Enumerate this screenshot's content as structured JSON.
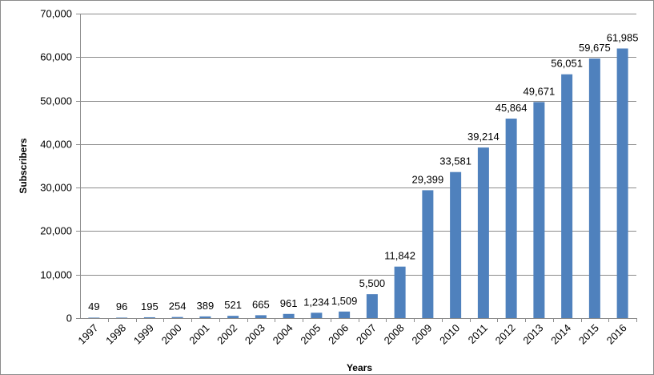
{
  "chart_data": {
    "type": "bar",
    "categories": [
      "1997",
      "1998",
      "1999",
      "2000",
      "2001",
      "2002",
      "2003",
      "2004",
      "2005",
      "2006",
      "2007",
      "2008",
      "2009",
      "2010",
      "2011",
      "2012",
      "2013",
      "2014",
      "2015",
      "2016"
    ],
    "values": [
      49,
      96,
      195,
      254,
      389,
      521,
      665,
      961,
      1234,
      1509,
      5500,
      11842,
      29399,
      33581,
      39214,
      45864,
      49671,
      56051,
      59675,
      61985
    ],
    "data_labels": [
      "49",
      "96",
      "195",
      "254",
      "389",
      "521",
      "665",
      "961",
      "1,234",
      "1,509",
      "5,500",
      "11,842",
      "29,399",
      "33,581",
      "39,214",
      "45,864",
      "49,671",
      "56,051",
      "59,675",
      "61,985"
    ],
    "y_ticks": [
      0,
      10000,
      20000,
      30000,
      40000,
      50000,
      60000,
      70000
    ],
    "y_tick_labels": [
      "0",
      "10,000",
      "20,000",
      "30,000",
      "40,000",
      "50,000",
      "60,000",
      "70,000"
    ],
    "xlabel": "Years",
    "ylabel": "Subscribers",
    "ylim": [
      0,
      70000
    ],
    "grid": true,
    "bar_color": "#4f81bd"
  }
}
